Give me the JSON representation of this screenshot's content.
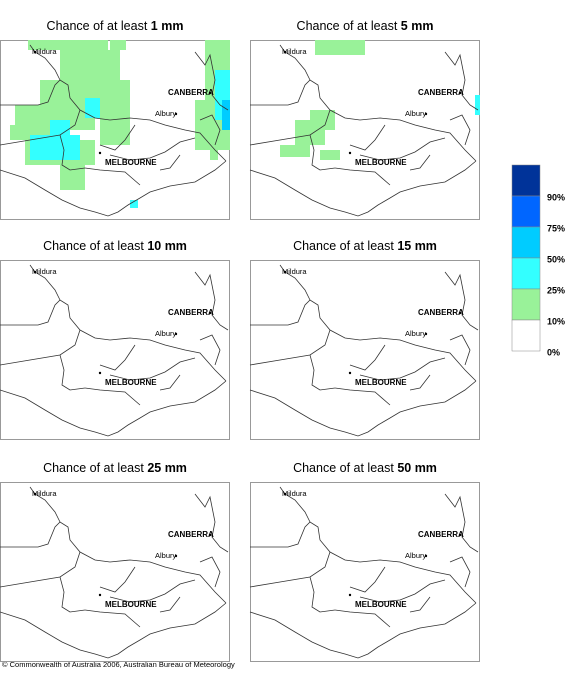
{
  "panels": [
    {
      "prefix": "Chance of at least",
      "amount": "1 mm"
    },
    {
      "prefix": "Chance of at least",
      "amount": "5 mm"
    },
    {
      "prefix": "Chance of at least",
      "amount": "10 mm"
    },
    {
      "prefix": "Chance of at least",
      "amount": "15 mm"
    },
    {
      "prefix": "Chance of at least",
      "amount": "25 mm"
    },
    {
      "prefix": "Chance of at least",
      "amount": "50 mm"
    }
  ],
  "places": [
    {
      "name": "Mildura"
    },
    {
      "name": "CANBERRA"
    },
    {
      "name": "Albury"
    },
    {
      "name": "MELBOURNE"
    }
  ],
  "legend": [
    {
      "label": "90%",
      "color": "#003399"
    },
    {
      "label": "75%",
      "color": "#0066ff"
    },
    {
      "label": "50%",
      "color": "#00ccff"
    },
    {
      "label": "25%",
      "color": "#33ffff"
    },
    {
      "label": "10%",
      "color": "#99f299"
    },
    {
      "label": "0%",
      "color": "#ffffff"
    }
  ],
  "copyright": "© Commonwealth of Australia 2006, Australian Bureau of Meteorology"
}
